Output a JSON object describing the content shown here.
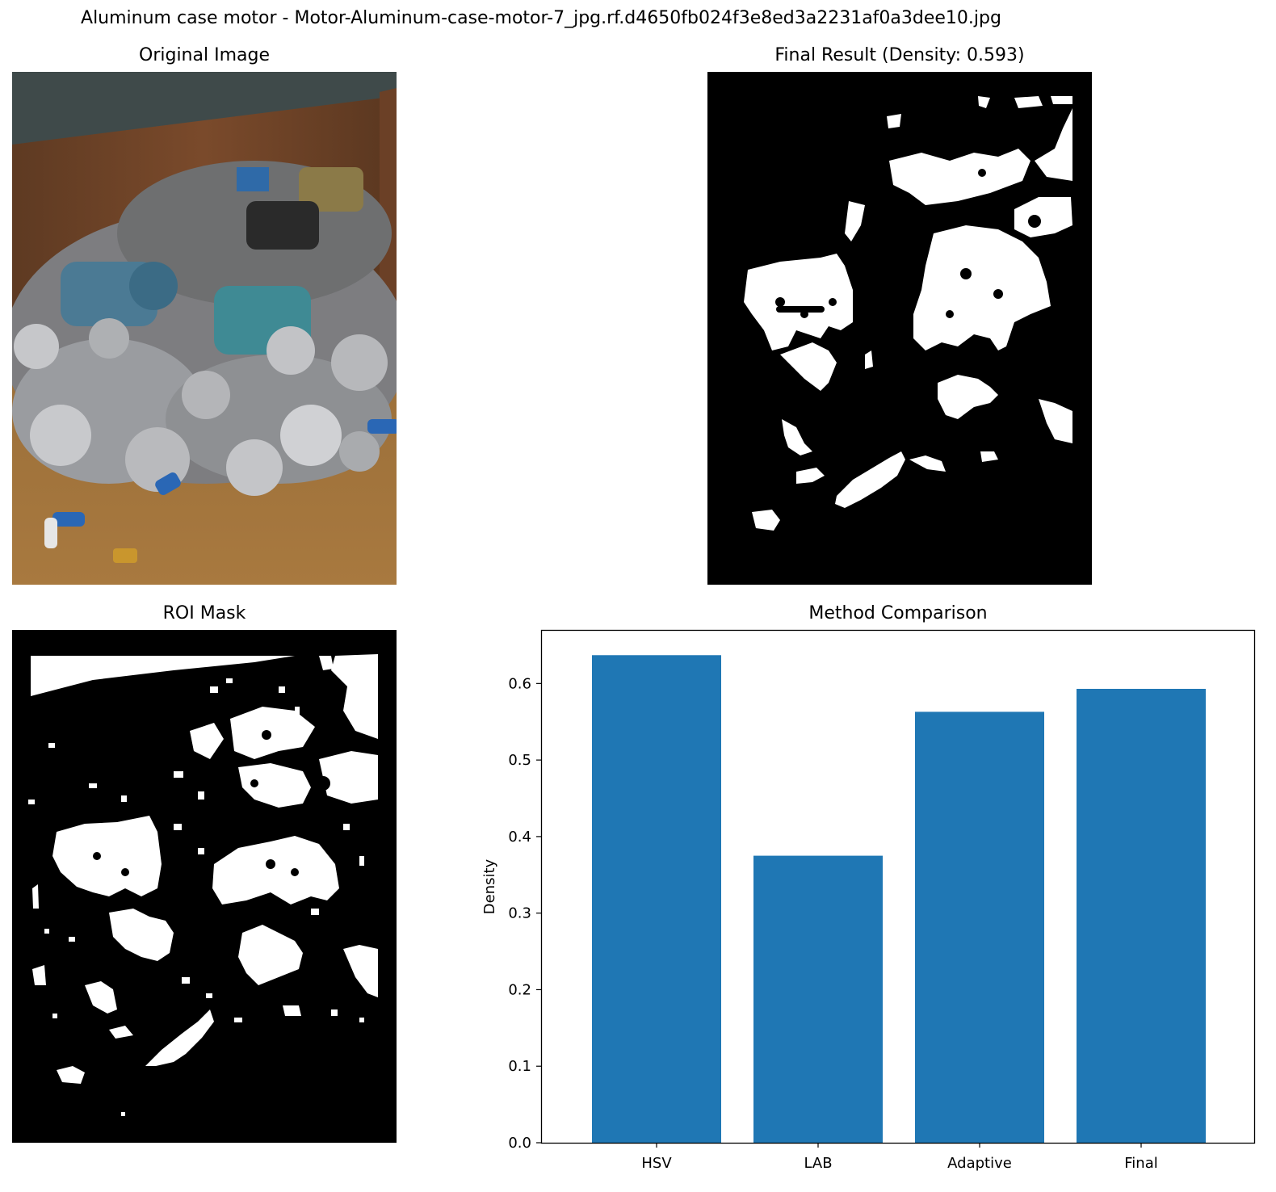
{
  "suptitle": "Aluminum case motor - Motor-Aluminum-case-motor-7_jpg.rf.d4650fb024f3e8ed3a2231af0a3dee10.jpg",
  "panels": {
    "original": {
      "title": "Original Image"
    },
    "final": {
      "title": "Final Result (Density: 0.593)"
    },
    "roi": {
      "title": "ROI Mask"
    },
    "comparison": {
      "title": "Method Comparison"
    }
  },
  "colors": {
    "bar": "#1f77b4",
    "mask_fg": "#ffffff",
    "mask_bg": "#000000"
  },
  "chart_data": {
    "type": "bar",
    "title": "Method Comparison",
    "categories": [
      "HSV",
      "LAB",
      "Adaptive",
      "Final"
    ],
    "values": [
      0.637,
      0.375,
      0.563,
      0.593
    ],
    "xlabel": "",
    "ylabel": "Density",
    "ylim": [
      0,
      0.67
    ],
    "yticks": [
      "0.0",
      "0.1",
      "0.2",
      "0.3",
      "0.4",
      "0.5",
      "0.6"
    ],
    "grid": false
  }
}
